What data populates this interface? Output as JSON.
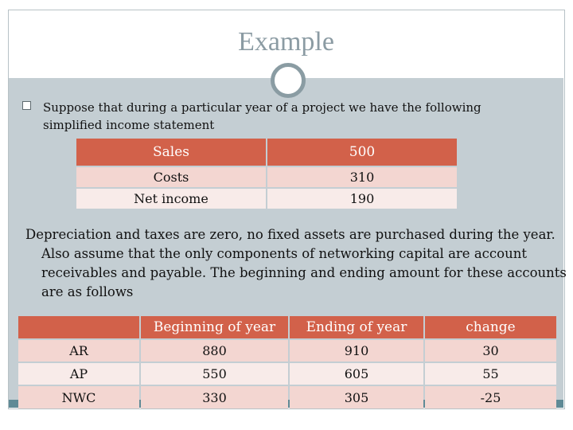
{
  "slide": {
    "title": "Example",
    "bullet": "Suppose that during a particular year of a project we have the following simplified income statement",
    "paragraph": "Depreciation and taxes are zero, no fixed assets are purchased during the year. Also assume that the only components of networking capital are account receivables and payable. The beginning and ending amount for these accounts are as follows"
  },
  "income_table": {
    "rows": [
      {
        "label": "Sales",
        "value": "500"
      },
      {
        "label": "Costs",
        "value": "310"
      },
      {
        "label": "Net income",
        "value": "190"
      }
    ]
  },
  "nwc_table": {
    "headers": [
      "",
      "Beginning of year",
      "Ending of year",
      "change"
    ],
    "rows": [
      [
        "AR",
        "880",
        "910",
        "30"
      ],
      [
        "AP",
        "550",
        "605",
        "55"
      ],
      [
        "NWC",
        "330",
        "305",
        "-25"
      ]
    ]
  },
  "colors": {
    "header": "#d2614a",
    "row_dark": "#f3d6d1",
    "row_light": "#f8ebe9",
    "background": "#c4ced3",
    "title": "#8b9ba3"
  }
}
